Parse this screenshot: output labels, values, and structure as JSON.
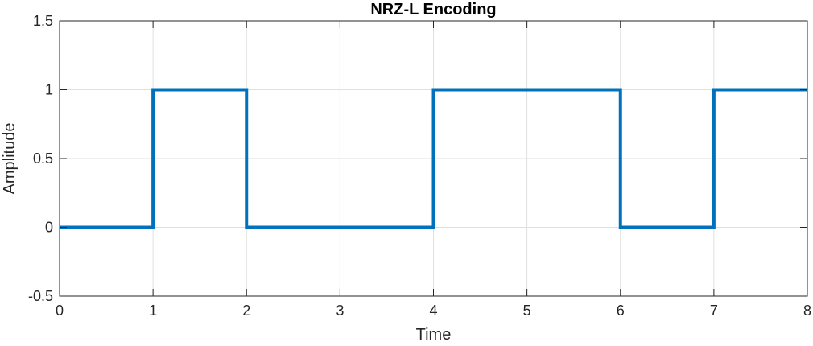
{
  "chart_data": {
    "type": "line",
    "title": "NRZ-L Encoding",
    "xlabel": "Time",
    "ylabel": "Amplitude",
    "xlim": [
      0,
      8
    ],
    "ylim": [
      -0.5,
      1.5
    ],
    "xticks": [
      0,
      1,
      2,
      3,
      4,
      5,
      6,
      7,
      8
    ],
    "yticks": [
      -0.5,
      0,
      0.5,
      1,
      1.5
    ],
    "xtick_labels": [
      "0",
      "1",
      "2",
      "3",
      "4",
      "5",
      "6",
      "7",
      "8"
    ],
    "ytick_labels": [
      "-0.5",
      "0",
      "0.5",
      "1",
      "1.5"
    ],
    "grid": true,
    "step": "post",
    "series": [
      {
        "color": "#0072BD",
        "x": [
          0,
          1,
          2,
          3,
          4,
          5,
          6,
          7,
          8
        ],
        "y": [
          0,
          1,
          0,
          0,
          1,
          1,
          0,
          1,
          1
        ]
      }
    ]
  }
}
